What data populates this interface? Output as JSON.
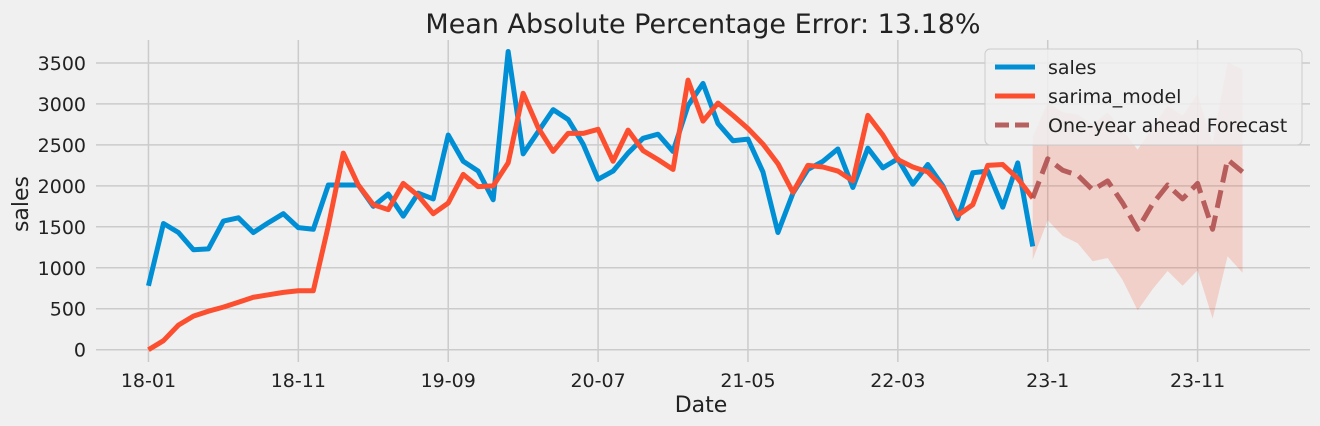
{
  "chart_data": {
    "type": "line",
    "title": "Mean Absolute Percentage Error: 13.18%",
    "xlabel": "Date",
    "ylabel": "sales",
    "x_ticks": [
      "18-01",
      "18-11",
      "19-09",
      "20-07",
      "21-05",
      "22-03",
      "23-1",
      "23-11"
    ],
    "x_tick_months": [
      0,
      10,
      20,
      30,
      40,
      50,
      60,
      70
    ],
    "y_ticks": [
      0,
      500,
      1000,
      1500,
      2000,
      2500,
      3000,
      3500
    ],
    "xlim": [
      -3.5,
      77.5
    ],
    "ylim": [
      -150,
      3780
    ],
    "grid": true,
    "legend_placement": "upper-right",
    "series": [
      {
        "name": "sales",
        "color": "#008fd5",
        "style": "solid",
        "x": [
          0,
          1,
          2,
          3,
          4,
          5,
          6,
          7,
          8,
          9,
          10,
          11,
          12,
          13,
          14,
          15,
          16,
          17,
          18,
          19,
          20,
          21,
          22,
          23,
          24,
          25,
          26,
          27,
          28,
          29,
          30,
          31,
          32,
          33,
          34,
          35,
          36,
          37,
          38,
          39,
          40,
          41,
          42,
          43,
          44,
          45,
          46,
          47,
          48,
          49,
          50,
          51,
          52,
          53,
          54,
          55,
          56,
          57,
          58,
          59
        ],
        "values": [
          780,
          1540,
          1430,
          1220,
          1230,
          1570,
          1610,
          1430,
          1550,
          1660,
          1490,
          1470,
          2010,
          2010,
          2010,
          1750,
          1900,
          1630,
          1910,
          1840,
          2620,
          2300,
          2180,
          1830,
          3640,
          2390,
          2660,
          2930,
          2810,
          2510,
          2080,
          2180,
          2400,
          2580,
          2630,
          2420,
          2980,
          3250,
          2760,
          2550,
          2570,
          2170,
          1430,
          1910,
          2200,
          2300,
          2450,
          1980,
          2460,
          2220,
          2330,
          2020,
          2260,
          2000,
          1600,
          2160,
          2180,
          1740,
          2280,
          1260
        ]
      },
      {
        "name": "sarima_model",
        "color": "#fc4f30",
        "style": "solid",
        "x": [
          0,
          1,
          2,
          3,
          4,
          5,
          6,
          7,
          8,
          9,
          10,
          11,
          12,
          13,
          14,
          15,
          16,
          17,
          18,
          19,
          20,
          21,
          22,
          23,
          24,
          25,
          26,
          27,
          28,
          29,
          30,
          31,
          32,
          33,
          34,
          35,
          36,
          37,
          38,
          39,
          40,
          41,
          42,
          43,
          44,
          45,
          46,
          47,
          48,
          49,
          50,
          51,
          52,
          53,
          54,
          55,
          56,
          57,
          58,
          59
        ],
        "values": [
          0,
          110,
          300,
          410,
          470,
          520,
          580,
          640,
          670,
          700,
          720,
          720,
          1510,
          2400,
          2010,
          1770,
          1710,
          2030,
          1880,
          1660,
          1790,
          2140,
          1990,
          2000,
          2280,
          3130,
          2710,
          2420,
          2640,
          2640,
          2690,
          2300,
          2680,
          2430,
          2320,
          2200,
          3290,
          2790,
          3010,
          2860,
          2700,
          2510,
          2270,
          1920,
          2250,
          2230,
          2180,
          2060,
          2860,
          2620,
          2320,
          2230,
          2170,
          1980,
          1640,
          1770,
          2250,
          2260,
          2090,
          1850
        ]
      },
      {
        "name": "One-year ahead Forecast",
        "color": "#b05050",
        "style": "dashed",
        "x": [
          59,
          60,
          61,
          62,
          63,
          64,
          65,
          66,
          67,
          68,
          69,
          70,
          71,
          72,
          73
        ],
        "values": [
          1850,
          2330,
          2190,
          2130,
          1950,
          2060,
          1790,
          1470,
          1780,
          2010,
          1840,
          2030,
          1470,
          2320,
          2170
        ]
      }
    ],
    "confidence_band": {
      "color": "#fc4f30",
      "x": [
        59,
        60,
        61,
        62,
        63,
        64,
        65,
        66,
        67,
        68,
        69,
        70,
        71,
        72,
        73
      ],
      "lower": [
        1100,
        1580,
        1390,
        1300,
        1080,
        1120,
        850,
        480,
        740,
        960,
        780,
        970,
        380,
        1140,
        940
      ],
      "upper": [
        2600,
        3020,
        2900,
        2870,
        2750,
        2900,
        2680,
        2440,
        2720,
        2980,
        2860,
        3120,
        2520,
        3510,
        3420
      ]
    }
  }
}
